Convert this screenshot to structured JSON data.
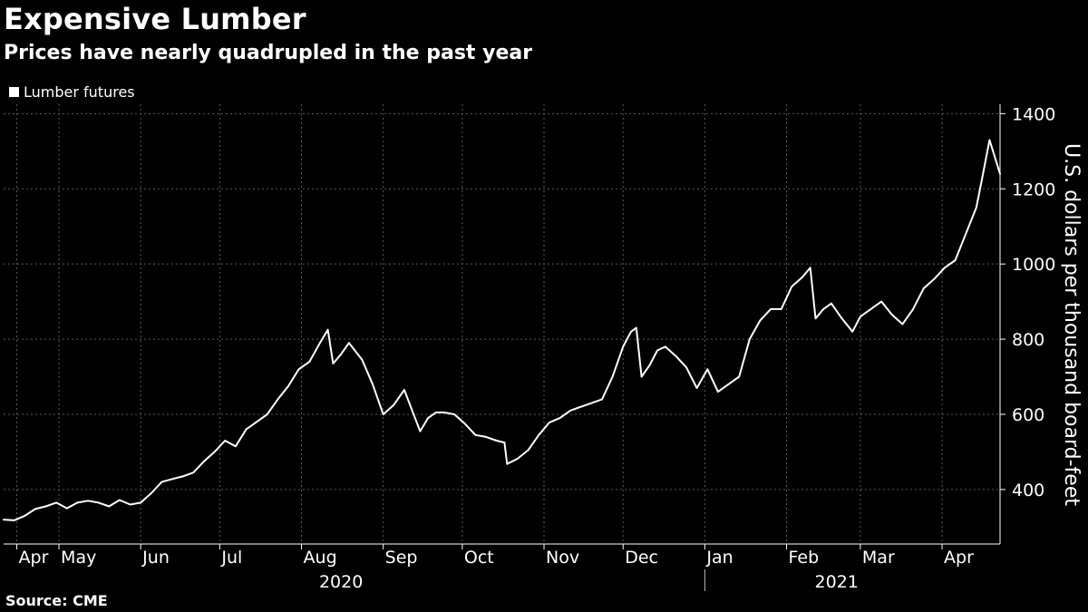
{
  "title": "Expensive Lumber",
  "subtitle": "Prices have nearly quadrupled in the past year",
  "source": "Source: CME",
  "chart_data": {
    "type": "line",
    "title": "Expensive Lumber",
    "subtitle": "Prices have nearly quadrupled in the past year",
    "ylabel": "U.S. dollars per thousand board-feet",
    "ylim": [
      255,
      1425
    ],
    "yticks": [
      400,
      600,
      800,
      1000,
      1200,
      1400
    ],
    "x_range": [
      "2020-04-10",
      "2021-04-23"
    ],
    "xticks": [
      {
        "label": "Apr",
        "date": "2020-04-15"
      },
      {
        "label": "May",
        "date": "2020-05-01"
      },
      {
        "label": "Jun",
        "date": "2020-06-01"
      },
      {
        "label": "Jul",
        "date": "2020-07-01"
      },
      {
        "label": "Aug",
        "date": "2020-08-01"
      },
      {
        "label": "Sep",
        "date": "2020-09-01"
      },
      {
        "label": "Oct",
        "date": "2020-10-01"
      },
      {
        "label": "Nov",
        "date": "2020-11-01"
      },
      {
        "label": "Dec",
        "date": "2020-12-01"
      },
      {
        "label": "Jan",
        "date": "2021-01-01"
      },
      {
        "label": "Feb",
        "date": "2021-02-01"
      },
      {
        "label": "Mar",
        "date": "2021-03-01"
      },
      {
        "label": "Apr",
        "date": "2021-04-01"
      }
    ],
    "year_labels": [
      {
        "label": "2020",
        "date": "2020-08-16"
      },
      {
        "label": "2021",
        "date": "2021-02-20"
      }
    ],
    "year_divider": "2021-01-01",
    "grid": true,
    "legend_position": "top-left",
    "series": [
      {
        "name": "Lumber futures",
        "color": "#ffffff",
        "x": [
          "2020-04-10",
          "2020-04-14",
          "2020-04-18",
          "2020-04-22",
          "2020-04-26",
          "2020-04-30",
          "2020-05-04",
          "2020-05-08",
          "2020-05-12",
          "2020-05-16",
          "2020-05-20",
          "2020-05-24",
          "2020-05-28",
          "2020-06-01",
          "2020-06-05",
          "2020-06-09",
          "2020-06-13",
          "2020-06-17",
          "2020-06-21",
          "2020-06-25",
          "2020-06-29",
          "2020-07-03",
          "2020-07-07",
          "2020-07-11",
          "2020-07-15",
          "2020-07-19",
          "2020-07-23",
          "2020-07-27",
          "2020-07-31",
          "2020-08-04",
          "2020-08-08",
          "2020-08-11",
          "2020-08-13",
          "2020-08-16",
          "2020-08-19",
          "2020-08-24",
          "2020-08-28",
          "2020-09-01",
          "2020-09-05",
          "2020-09-09",
          "2020-09-12",
          "2020-09-15",
          "2020-09-18",
          "2020-09-21",
          "2020-09-24",
          "2020-09-28",
          "2020-10-02",
          "2020-10-06",
          "2020-10-10",
          "2020-10-14",
          "2020-10-17",
          "2020-10-18",
          "2020-10-22",
          "2020-10-26",
          "2020-10-30",
          "2020-11-03",
          "2020-11-07",
          "2020-11-11",
          "2020-11-15",
          "2020-11-19",
          "2020-11-23",
          "2020-11-27",
          "2020-12-01",
          "2020-12-04",
          "2020-12-06",
          "2020-12-08",
          "2020-12-11",
          "2020-12-14",
          "2020-12-17",
          "2020-12-21",
          "2020-12-25",
          "2020-12-29",
          "2021-01-02",
          "2021-01-06",
          "2021-01-10",
          "2021-01-14",
          "2021-01-18",
          "2021-01-22",
          "2021-01-26",
          "2021-01-30",
          "2021-02-03",
          "2021-02-07",
          "2021-02-10",
          "2021-02-12",
          "2021-02-15",
          "2021-02-18",
          "2021-02-22",
          "2021-02-26",
          "2021-03-01",
          "2021-03-05",
          "2021-03-09",
          "2021-03-13",
          "2021-03-17",
          "2021-03-21",
          "2021-03-25",
          "2021-03-29",
          "2021-04-02",
          "2021-04-06",
          "2021-04-10",
          "2021-04-14",
          "2021-04-16",
          "2021-04-19",
          "2021-04-23"
        ],
        "y": [
          320,
          318,
          330,
          348,
          355,
          365,
          350,
          365,
          370,
          365,
          355,
          372,
          360,
          365,
          390,
          420,
          428,
          435,
          445,
          475,
          500,
          530,
          515,
          560,
          580,
          600,
          640,
          675,
          720,
          740,
          790,
          825,
          735,
          760,
          790,
          745,
          680,
          600,
          625,
          665,
          610,
          555,
          590,
          605,
          605,
          600,
          575,
          545,
          540,
          530,
          525,
          468,
          482,
          505,
          545,
          578,
          590,
          610,
          620,
          630,
          640,
          700,
          780,
          820,
          830,
          700,
          730,
          770,
          780,
          755,
          725,
          670,
          720,
          660,
          680,
          700,
          800,
          850,
          880,
          880,
          940,
          965,
          990,
          855,
          880,
          895,
          855,
          820,
          860,
          880,
          900,
          865,
          840,
          880,
          935,
          960,
          990,
          1010,
          1080,
          1150,
          1220,
          1330,
          1240
        ]
      }
    ]
  }
}
